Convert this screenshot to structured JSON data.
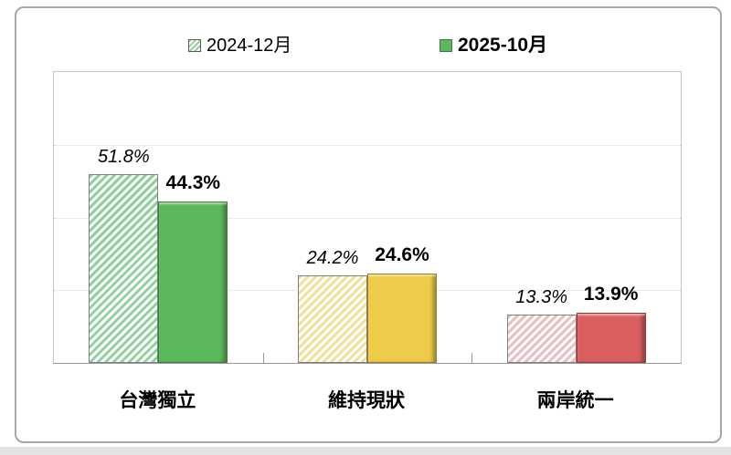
{
  "legend": {
    "items": [
      {
        "label": "2024-12月",
        "swatch": "hatched-green-square",
        "bold": false
      },
      {
        "label": "2025-10月",
        "swatch": "solid-green-square",
        "bold": true
      }
    ]
  },
  "chart_data": {
    "type": "bar",
    "title": "",
    "xlabel": "",
    "ylabel": "",
    "categories": [
      "台灣獨立",
      "維持現狀",
      "兩岸統一"
    ],
    "series": [
      {
        "name": "2024-12月",
        "style": "hatched",
        "values": [
          51.8,
          24.2,
          13.3
        ],
        "value_labels": [
          "51.8%",
          "24.2%",
          "13.3%"
        ],
        "label_style": "italic"
      },
      {
        "name": "2025-10月",
        "style": "solid",
        "values": [
          44.3,
          24.6,
          13.9
        ],
        "value_labels": [
          "44.3%",
          "24.6%",
          "13.9%"
        ],
        "label_style": "bold"
      }
    ],
    "ylim": [
      0,
      80
    ],
    "gridline_interval": 20,
    "grid": "horizontal-dotted",
    "y_axis_ticks_visible": false,
    "legend_position": "top-center",
    "category_colors": [
      {
        "category": "台灣獨立",
        "solid_fill": "#5cb85c",
        "solid_border": "#3e7d3f",
        "hatch_stripe": "#8fd19c"
      },
      {
        "category": "維持現狀",
        "solid_fill": "#efcb4a",
        "solid_border": "#9a7d20",
        "hatch_stripe": "#f2e19d"
      },
      {
        "category": "兩岸統一",
        "solid_fill": "#d95f5f",
        "solid_border": "#97343a",
        "hatch_stripe": "#ecc0c1"
      }
    ],
    "hatch_border_color": "#7f7f7f",
    "background_color": "#ffffff"
  }
}
